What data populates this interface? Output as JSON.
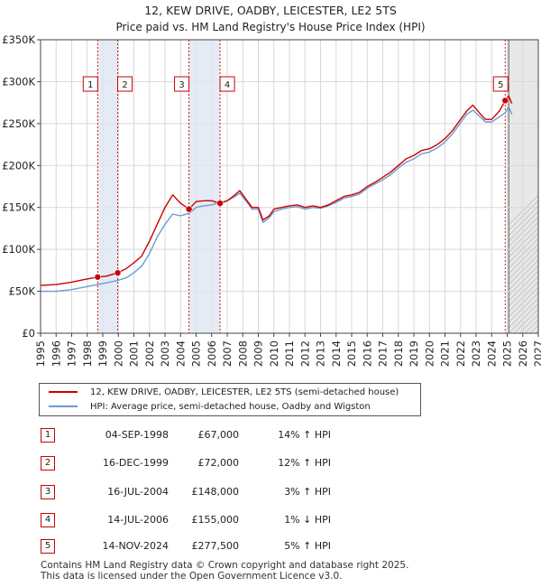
{
  "title_line1": "12, KEW DRIVE, OADBY, LEICESTER, LE2 5TS",
  "title_line2": "Price paid vs. HM Land Registry's House Price Index (HPI)",
  "chart_data": {
    "type": "line",
    "title": "12, KEW DRIVE, OADBY, LEICESTER, LE2 5TS",
    "subtitle": "Price paid vs. HM Land Registry's House Price Index (HPI)",
    "xlabel": "",
    "ylabel": "",
    "xlim": [
      1995,
      2027
    ],
    "ylim": [
      0,
      350000
    ],
    "y_ticks": [
      {
        "value": 0,
        "label": "£0"
      },
      {
        "value": 50000,
        "label": "£50K"
      },
      {
        "value": 100000,
        "label": "£100K"
      },
      {
        "value": 150000,
        "label": "£150K"
      },
      {
        "value": 200000,
        "label": "£200K"
      },
      {
        "value": 250000,
        "label": "£250K"
      },
      {
        "value": 300000,
        "label": "£300K"
      },
      {
        "value": 350000,
        "label": "£350K"
      }
    ],
    "x_ticks": [
      "1995",
      "1996",
      "1997",
      "1998",
      "1999",
      "2000",
      "2001",
      "2002",
      "2003",
      "2004",
      "2005",
      "2006",
      "2007",
      "2008",
      "2009",
      "2010",
      "2011",
      "2012",
      "2013",
      "2014",
      "2015",
      "2016",
      "2017",
      "2018",
      "2019",
      "2020",
      "2021",
      "2022",
      "2023",
      "2024",
      "2025",
      "2026",
      "2027"
    ],
    "grid": true,
    "shaded_periods": [
      [
        1998.67,
        1999.96
      ],
      [
        2004.54,
        2006.54
      ]
    ],
    "forecast_start": 2025.1,
    "series": [
      {
        "name": "12, KEW DRIVE, OADBY, LEICESTER, LE2 5TS (semi-detached house)",
        "color": "#cc0000",
        "x": [
          1995.0,
          1996.0,
          1997.0,
          1997.8,
          1998.67,
          1999.2,
          1999.96,
          2000.5,
          2001.0,
          2001.5,
          2002.0,
          2002.5,
          2003.0,
          2003.5,
          2004.0,
          2004.54,
          2005.0,
          2005.5,
          2006.0,
          2006.54,
          2007.0,
          2007.5,
          2007.8,
          2008.2,
          2008.6,
          2009.0,
          2009.3,
          2009.7,
          2010.0,
          2010.5,
          2011.0,
          2011.5,
          2012.0,
          2012.5,
          2013.0,
          2013.5,
          2014.0,
          2014.5,
          2015.0,
          2015.5,
          2016.0,
          2016.5,
          2017.0,
          2017.5,
          2018.0,
          2018.5,
          2019.0,
          2019.5,
          2020.0,
          2020.5,
          2021.0,
          2021.5,
          2022.0,
          2022.4,
          2022.8,
          2023.2,
          2023.6,
          2024.0,
          2024.5,
          2024.87,
          2025.1,
          2025.3
        ],
        "values": [
          57000,
          58000,
          61000,
          64000,
          67000,
          68000,
          72000,
          77000,
          84000,
          92000,
          110000,
          130000,
          150000,
          165000,
          155000,
          148000,
          157000,
          158000,
          158000,
          155000,
          158000,
          165000,
          170000,
          160000,
          150000,
          150000,
          135000,
          140000,
          148000,
          150000,
          152000,
          153000,
          150000,
          152000,
          150000,
          153000,
          158000,
          163000,
          165000,
          168000,
          175000,
          180000,
          186000,
          192000,
          200000,
          208000,
          212000,
          218000,
          220000,
          225000,
          232000,
          242000,
          255000,
          265000,
          272000,
          263000,
          255000,
          255000,
          265000,
          277500,
          283000,
          274000
        ]
      },
      {
        "name": "HPI: Average price, semi-detached house, Oadby and Wigston",
        "color": "#6b9bd1",
        "x": [
          1995.0,
          1996.0,
          1997.0,
          1997.8,
          1998.67,
          1999.2,
          1999.96,
          2000.5,
          2001.0,
          2001.5,
          2002.0,
          2002.5,
          2003.0,
          2003.5,
          2004.0,
          2004.54,
          2005.0,
          2005.5,
          2006.0,
          2006.54,
          2007.0,
          2007.5,
          2007.8,
          2008.2,
          2008.6,
          2009.0,
          2009.3,
          2009.7,
          2010.0,
          2010.5,
          2011.0,
          2011.5,
          2012.0,
          2012.5,
          2013.0,
          2013.5,
          2014.0,
          2014.5,
          2015.0,
          2015.5,
          2016.0,
          2016.5,
          2017.0,
          2017.5,
          2018.0,
          2018.5,
          2019.0,
          2019.5,
          2020.0,
          2020.5,
          2021.0,
          2021.5,
          2022.0,
          2022.4,
          2022.8,
          2023.2,
          2023.6,
          2024.0,
          2024.5,
          2024.87,
          2025.1,
          2025.3
        ],
        "values": [
          50000,
          50000,
          52000,
          55000,
          58000,
          60000,
          63000,
          66000,
          72000,
          80000,
          95000,
          115000,
          130000,
          142000,
          140000,
          143000,
          150000,
          152000,
          153000,
          156000,
          158000,
          163000,
          167000,
          158000,
          148000,
          148000,
          132000,
          138000,
          145000,
          148000,
          150000,
          151000,
          148000,
          150000,
          149000,
          152000,
          156000,
          161000,
          163000,
          166000,
          173000,
          178000,
          183000,
          189000,
          197000,
          204000,
          208000,
          214000,
          216000,
          221000,
          228000,
          238000,
          251000,
          261000,
          266000,
          259000,
          252000,
          252000,
          258000,
          263000,
          270000,
          261000
        ]
      }
    ],
    "markers": [
      {
        "label": "1",
        "x": 1998.67,
        "y": 67000
      },
      {
        "label": "2",
        "x": 1999.96,
        "y": 72000
      },
      {
        "label": "3",
        "x": 2004.54,
        "y": 148000
      },
      {
        "label": "4",
        "x": 2006.54,
        "y": 155000
      },
      {
        "label": "5",
        "x": 2024.87,
        "y": 277500
      }
    ]
  },
  "legend": {
    "items": [
      {
        "label": "12, KEW DRIVE, OADBY, LEICESTER, LE2 5TS (semi-detached house)",
        "color": "#cc0000"
      },
      {
        "label": "HPI: Average price, semi-detached house, Oadby and Wigston",
        "color": "#6b9bd1"
      }
    ]
  },
  "transactions": [
    {
      "num": "1",
      "date": "04-SEP-1998",
      "price": "£67,000",
      "hpi": "14% ↑ HPI"
    },
    {
      "num": "2",
      "date": "16-DEC-1999",
      "price": "£72,000",
      "hpi": "12% ↑ HPI"
    },
    {
      "num": "3",
      "date": "16-JUL-2004",
      "price": "£148,000",
      "hpi": "3% ↑ HPI"
    },
    {
      "num": "4",
      "date": "14-JUL-2006",
      "price": "£155,000",
      "hpi": "1% ↓ HPI"
    },
    {
      "num": "5",
      "date": "14-NOV-2024",
      "price": "£277,500",
      "hpi": "5% ↑ HPI"
    }
  ],
  "footer": {
    "line1": "Contains HM Land Registry data © Crown copyright and database right 2025.",
    "line2": "This data is licensed under the Open Government Licence v3.0."
  }
}
